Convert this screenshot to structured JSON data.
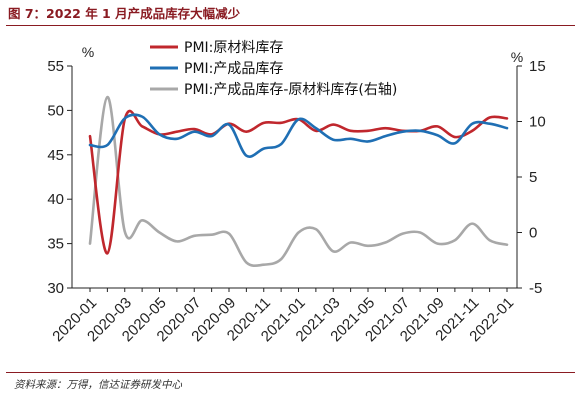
{
  "figure": {
    "title": "图 7：2022 年 1 月产成品库存大幅减少",
    "source": "资料来源：万得，信达证券研发中心"
  },
  "colors": {
    "raw_material": "#c0272d",
    "finished_goods": "#1f6fb4",
    "difference": "#a8a8a8",
    "brand": "#8a1b22"
  },
  "chart_data": {
    "type": "line",
    "title": "",
    "xlabel": "",
    "left_unit": "%",
    "right_unit": "%",
    "x": [
      "2020-01",
      "2020-02",
      "2020-03",
      "2020-04",
      "2020-05",
      "2020-06",
      "2020-07",
      "2020-08",
      "2020-09",
      "2020-10",
      "2020-11",
      "2020-12",
      "2021-01",
      "2021-02",
      "2021-03",
      "2021-04",
      "2021-05",
      "2021-06",
      "2021-07",
      "2021-08",
      "2021-09",
      "2021-10",
      "2021-11",
      "2021-12",
      "2022-01"
    ],
    "x_tick_labels": [
      "2020-01",
      "2020-03",
      "2020-05",
      "2020-07",
      "2020-09",
      "2020-11",
      "2021-01",
      "2021-03",
      "2021-05",
      "2021-07",
      "2021-09",
      "2021-11",
      "2022-01"
    ],
    "left_ylim": [
      30,
      55
    ],
    "left_yticks": [
      30,
      35,
      40,
      45,
      50,
      55
    ],
    "right_ylim": [
      -5,
      15
    ],
    "right_yticks": [
      -5,
      0,
      5,
      10,
      15
    ],
    "legend_position": "top-center",
    "grid": false,
    "series": [
      {
        "name": "PMI:原材料库存",
        "axis": "left",
        "color": "#c0272d",
        "values": [
          47.1,
          33.9,
          49.0,
          48.2,
          47.3,
          47.6,
          47.9,
          47.3,
          48.5,
          47.6,
          48.6,
          48.6,
          49.0,
          47.7,
          48.4,
          47.7,
          47.7,
          48.0,
          47.7,
          47.7,
          48.2,
          47.0,
          47.7,
          49.2,
          49.1
        ]
      },
      {
        "name": "PMI:产成品库存",
        "axis": "left",
        "color": "#1f6fb4",
        "values": [
          46.1,
          46.1,
          49.1,
          49.3,
          47.3,
          46.8,
          47.6,
          47.1,
          48.4,
          44.9,
          45.7,
          46.2,
          49.0,
          48.0,
          46.7,
          46.8,
          46.5,
          47.1,
          47.6,
          47.7,
          47.2,
          46.3,
          48.5,
          48.5,
          48.0
        ]
      },
      {
        "name": "PMI:产成品库存-原材料库存(右轴)",
        "axis": "right",
        "color": "#a8a8a8",
        "values": [
          -1.0,
          12.2,
          0.1,
          1.1,
          0.0,
          -0.8,
          -0.3,
          -0.2,
          -0.1,
          -2.7,
          -2.9,
          -2.4,
          0.0,
          0.3,
          -1.7,
          -0.9,
          -1.2,
          -0.9,
          -0.1,
          0.0,
          -1.0,
          -0.7,
          0.8,
          -0.7,
          -1.1
        ]
      }
    ]
  }
}
